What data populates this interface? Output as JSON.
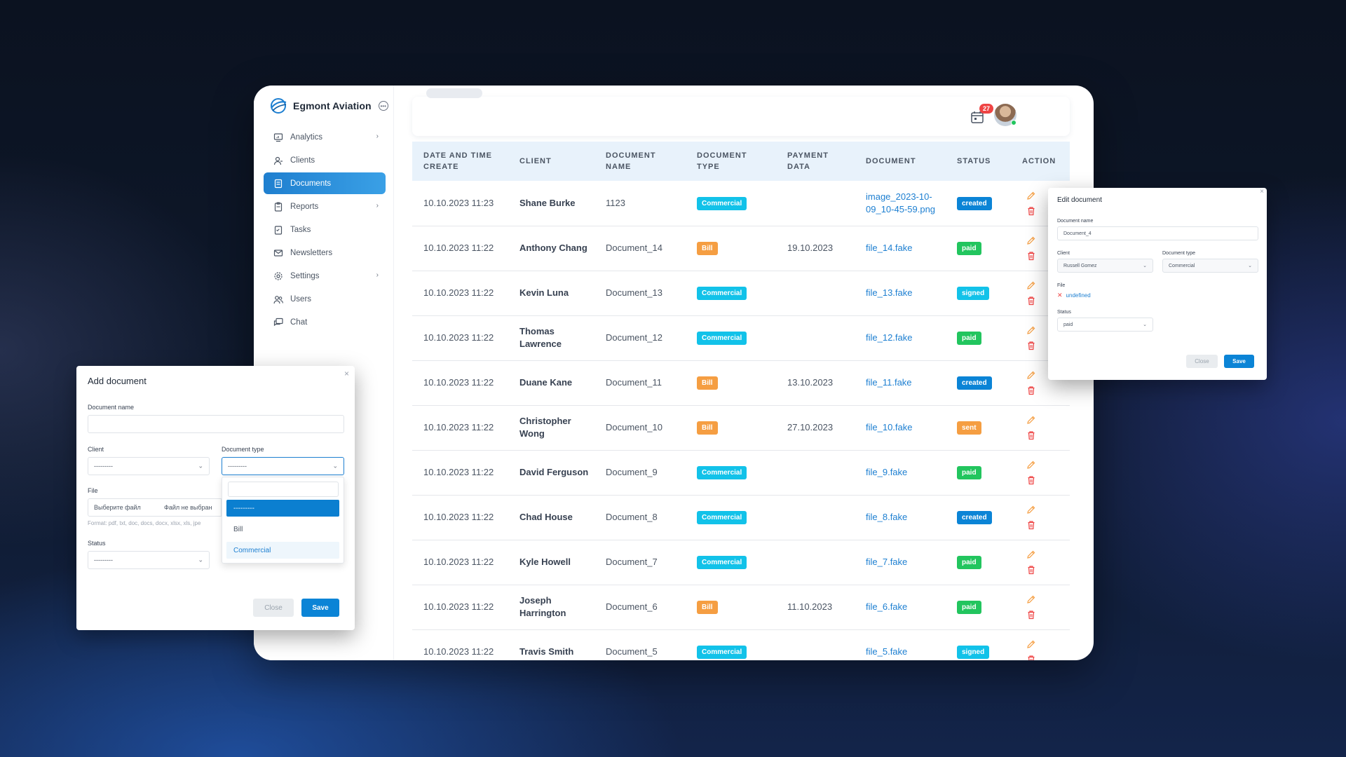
{
  "brand": {
    "name": "Egmont Aviation"
  },
  "sidebar": {
    "items": [
      {
        "label": "Analytics",
        "icon": "analytics-icon",
        "chevron": true
      },
      {
        "label": "Clients",
        "icon": "clients-icon",
        "chevron": false
      },
      {
        "label": "Documents",
        "icon": "documents-icon",
        "chevron": false,
        "active": true
      },
      {
        "label": "Reports",
        "icon": "reports-icon",
        "chevron": true
      },
      {
        "label": "Tasks",
        "icon": "tasks-icon",
        "chevron": false
      },
      {
        "label": "Newsletters",
        "icon": "newsletters-icon",
        "chevron": false
      },
      {
        "label": "Settings",
        "icon": "settings-icon",
        "chevron": true
      },
      {
        "label": "Users",
        "icon": "users-icon",
        "chevron": false
      },
      {
        "label": "Chat",
        "icon": "chat-icon",
        "chevron": false
      }
    ]
  },
  "topbar": {
    "notification_count": "27"
  },
  "colors": {
    "accent": "#0b84d6",
    "commercial": "#12c2e9",
    "bill": "#f59e42",
    "created": "#0b84d6",
    "paid": "#22c55e",
    "signed": "#12c2e9",
    "sent": "#f59e42"
  },
  "table": {
    "headers": {
      "date_line1": "DATE AND TIME",
      "date_line2": "CREATE",
      "client": "CLIENT",
      "docname_line1": "DOCUMENT",
      "docname_line2": "NAME",
      "doctype_line1": "DOCUMENT",
      "doctype_line2": "TYPE",
      "payment_line1": "PAYMENT",
      "payment_line2": "DATA",
      "document": "DOCUMENT",
      "status": "STATUS",
      "action": "ACTION"
    },
    "rows": [
      {
        "date": "10.10.2023 11:23",
        "client": "Shane Burke",
        "name": "1123",
        "type": "Commercial",
        "payment": "",
        "file": "image_2023-10-09_10-45-59.png",
        "status": "created"
      },
      {
        "date": "10.10.2023 11:22",
        "client": "Anthony Chang",
        "name": "Document_14",
        "type": "Bill",
        "payment": "19.10.2023",
        "file": "file_14.fake",
        "status": "paid"
      },
      {
        "date": "10.10.2023 11:22",
        "client": "Kevin Luna",
        "name": "Document_13",
        "type": "Commercial",
        "payment": "",
        "file": "file_13.fake",
        "status": "signed"
      },
      {
        "date": "10.10.2023 11:22",
        "client": "Thomas Lawrence",
        "name": "Document_12",
        "type": "Commercial",
        "payment": "",
        "file": "file_12.fake",
        "status": "paid"
      },
      {
        "date": "10.10.2023 11:22",
        "client": "Duane Kane",
        "name": "Document_11",
        "type": "Bill",
        "payment": "13.10.2023",
        "file": "file_11.fake",
        "status": "created"
      },
      {
        "date": "10.10.2023 11:22",
        "client": "Christopher Wong",
        "name": "Document_10",
        "type": "Bill",
        "payment": "27.10.2023",
        "file": "file_10.fake",
        "status": "sent"
      },
      {
        "date": "10.10.2023 11:22",
        "client": "David Ferguson",
        "name": "Document_9",
        "type": "Commercial",
        "payment": "",
        "file": "file_9.fake",
        "status": "paid"
      },
      {
        "date": "10.10.2023 11:22",
        "client": "Chad House",
        "name": "Document_8",
        "type": "Commercial",
        "payment": "",
        "file": "file_8.fake",
        "status": "created"
      },
      {
        "date": "10.10.2023 11:22",
        "client": "Kyle Howell",
        "name": "Document_7",
        "type": "Commercial",
        "payment": "",
        "file": "file_7.fake",
        "status": "paid"
      },
      {
        "date": "10.10.2023 11:22",
        "client": "Joseph Harrington",
        "name": "Document_6",
        "type": "Bill",
        "payment": "11.10.2023",
        "file": "file_6.fake",
        "status": "paid"
      },
      {
        "date": "10.10.2023 11:22",
        "client": "Travis Smith",
        "name": "Document_5",
        "type": "Commercial",
        "payment": "",
        "file": "file_5.fake",
        "status": "signed"
      }
    ]
  },
  "add_modal": {
    "title": "Add document",
    "close_icon": "×",
    "name_label": "Document name",
    "name_value": "",
    "client_label": "Client",
    "client_value": "---------",
    "type_label": "Document type",
    "type_value": "---------",
    "file_label": "File",
    "file_button": "Выберите файл",
    "file_status": "Файл не выбран",
    "file_hint": "Format: pdf, txt, doc, docs, docx, xlsx, xls, jpe",
    "status_label": "Status",
    "status_value": "---------",
    "dropdown_options": [
      "---------",
      "Bill",
      "Commercial"
    ],
    "close_label": "Close",
    "save_label": "Save"
  },
  "edit_modal": {
    "title": "Edit document",
    "close_icon": "×",
    "name_label": "Document name",
    "name_value": "Document_4",
    "client_label": "Client",
    "client_value": "Russell Gomez",
    "type_label": "Document type",
    "type_value": "Commercial",
    "file_label": "File",
    "file_value": "undefined",
    "status_label": "Status",
    "status_value": "paid",
    "close_label": "Close",
    "save_label": "Save"
  }
}
